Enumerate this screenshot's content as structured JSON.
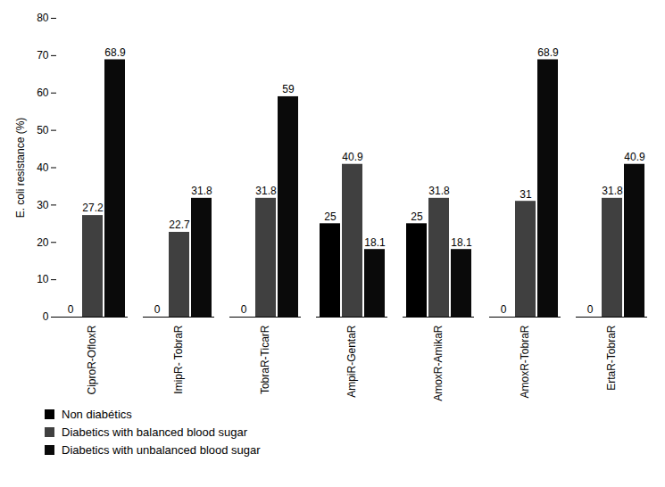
{
  "chart_data": {
    "type": "bar",
    "y_label": "E. coli resistance (%)",
    "categories": [
      "CiproR-OfloxR",
      "ImipR- TobraR",
      "TobraR-TicarR",
      "AmpiR-GentaR",
      "AmoxR-AmikaR",
      "AmoxR-TobraR",
      "ErtaR-TobraR"
    ],
    "series": [
      {
        "name": "Non diabétics",
        "color": "#000000",
        "values": [
          0,
          0,
          0,
          25,
          25,
          0,
          0
        ]
      },
      {
        "name": "Diabetics with balanced blood sugar",
        "color": "#404040",
        "values": [
          27.2,
          22.7,
          31.8,
          40.9,
          31.8,
          31,
          31.8
        ]
      },
      {
        "name": "Diabetics with unbalanced blood sugar",
        "color": "#0a0a0a",
        "values": [
          68.9,
          31.8,
          59,
          18.1,
          18.1,
          68.9,
          40.9
        ]
      }
    ],
    "ylim": [
      0,
      80
    ],
    "yticks": [
      0,
      10,
      20,
      30,
      40,
      50,
      60,
      70,
      80
    ],
    "grid": false,
    "data_labels": true,
    "legend": "bottom"
  }
}
